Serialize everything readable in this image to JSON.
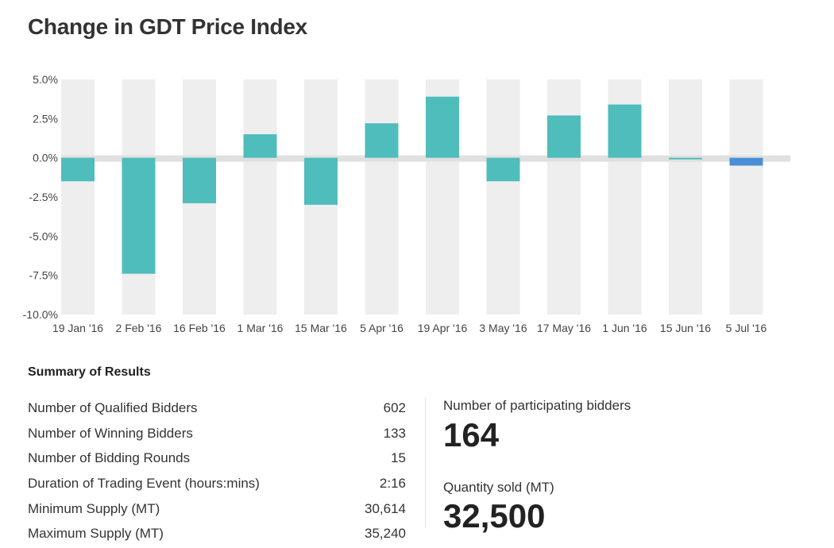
{
  "title": "Change in GDT Price Index",
  "chart_data": {
    "type": "bar",
    "title": "Change in GDT Price Index",
    "categories": [
      "19 Jan '16",
      "2 Feb '16",
      "16 Feb '16",
      "1 Mar '16",
      "15 Mar '16",
      "5 Apr '16",
      "19 Apr '16",
      "3 May '16",
      "17 May '16",
      "1 Jun '16",
      "15 Jun '16",
      "5 Jul '16"
    ],
    "values": [
      -1.5,
      -7.4,
      -2.9,
      1.5,
      -3.0,
      2.2,
      3.9,
      -1.5,
      2.7,
      3.4,
      -0.1,
      -0.5
    ],
    "yticks": [
      "5.0%",
      "2.5%",
      "0.0%",
      "-2.5%",
      "-5.0%",
      "-7.5%",
      "-10.0%"
    ],
    "ylim": [
      -10,
      5
    ],
    "grid": true,
    "colors": {
      "bar": "#4fbdbc",
      "last_bar": "#4a8fd6",
      "band": "#eeeeee",
      "zero": "#e0e0e0"
    }
  },
  "summary": {
    "title": "Summary of Results",
    "rows": [
      {
        "label": "Number of Qualified Bidders",
        "value": "602"
      },
      {
        "label": "Number of Winning Bidders",
        "value": "133"
      },
      {
        "label": "Number of Bidding Rounds",
        "value": "15"
      },
      {
        "label": "Duration of Trading Event (hours:mins)",
        "value": "2:16"
      },
      {
        "label": "Minimum Supply (MT)",
        "value": "30,614"
      },
      {
        "label": "Maximum Supply (MT)",
        "value": "35,240"
      }
    ]
  },
  "stats": {
    "bidders_label": "Number of participating bidders",
    "bidders_value": "164",
    "quantity_label": "Quantity sold (MT)",
    "quantity_value": "32,500"
  }
}
